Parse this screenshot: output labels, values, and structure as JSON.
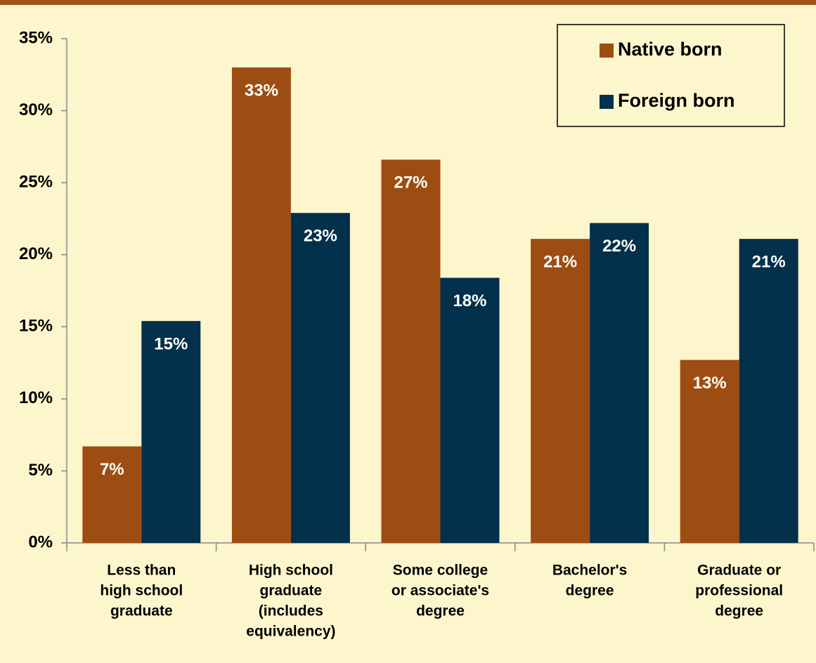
{
  "chart_data": {
    "type": "bar",
    "categories": [
      [
        "Less than",
        "high school",
        "graduate"
      ],
      [
        "High school",
        "graduate",
        "(includes",
        "equivalency)"
      ],
      [
        "Some college",
        "or associate's",
        "degree"
      ],
      [
        "Bachelor's",
        "degree"
      ],
      [
        "Graduate or",
        "professional",
        "degree"
      ]
    ],
    "series": [
      {
        "name": "Native born",
        "color": "#9e4d12",
        "values": [
          6.7,
          33,
          26.6,
          21.1,
          12.7
        ],
        "value_labels": [
          "7%",
          "33%",
          "27%",
          "21%",
          "13%"
        ]
      },
      {
        "name": "Foreign born",
        "color": "#03304a",
        "values": [
          15.4,
          22.9,
          18.4,
          22.2,
          21.1
        ],
        "value_labels": [
          "15%",
          "23%",
          "18%",
          "22%",
          "21%"
        ]
      }
    ],
    "ylim": [
      0,
      35
    ],
    "yticks": [
      {
        "value": 0,
        "label": "0%"
      },
      {
        "value": 5,
        "label": "5%"
      },
      {
        "value": 10,
        "label": "10%"
      },
      {
        "value": 15,
        "label": "15%"
      },
      {
        "value": 20,
        "label": "20%"
      },
      {
        "value": 25,
        "label": "25%"
      },
      {
        "value": 30,
        "label": "30%"
      },
      {
        "value": 35,
        "label": "35%"
      }
    ],
    "legend": "top-right"
  }
}
